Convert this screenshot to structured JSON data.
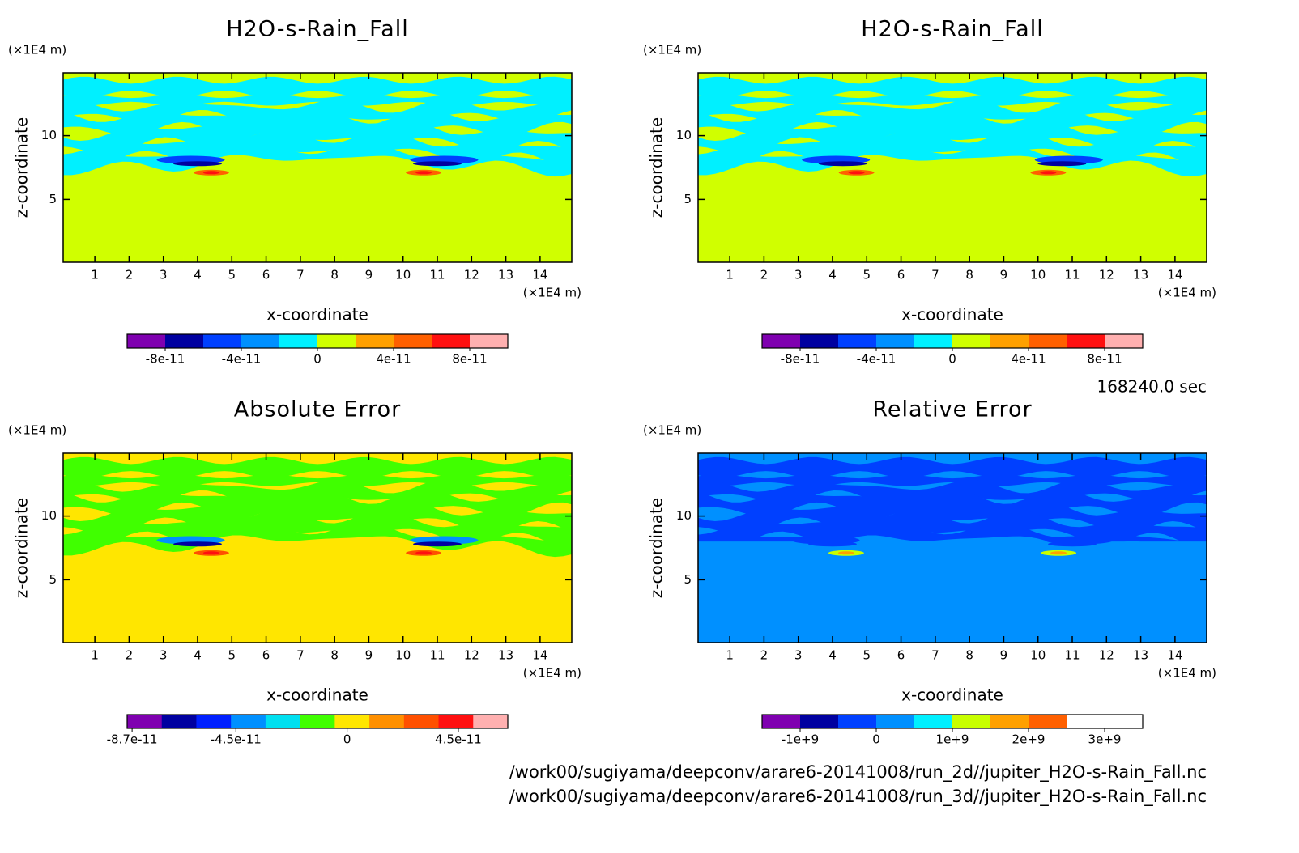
{
  "time": "168240.0 sec",
  "files": [
    "/work00/sugiyama/deepconv/arare6-20141008/run_2d//jupiter_H2O-s-Rain_Fall.nc",
    "/work00/sugiyama/deepconv/arare6-20141008/run_3d//jupiter_H2O-s-Rain_Fall.nc"
  ],
  "chart_data": [
    {
      "type": "contour",
      "title": "H2O-s-Rain_Fall",
      "x_label": "x-coordinate",
      "y_label": "z-coordinate",
      "x_unit": "(×1E4 m)",
      "y_unit": "(×1E4 m)",
      "xlim": [
        0.075,
        14.925
      ],
      "ylim": [
        0.075,
        14.925
      ],
      "xticks": [
        1,
        2,
        3,
        4,
        5,
        6,
        7,
        8,
        9,
        10,
        11,
        12,
        13,
        14
      ],
      "yticks": [
        5,
        10
      ],
      "colorbar": {
        "lim": [
          -1e-10,
          1e-10
        ],
        "colors": [
          "#7f00b0",
          "#0000a0",
          "#0040ff",
          "#0090ff",
          "#00f0ff",
          "#d0ff00",
          "#ffa000",
          "#ff6000",
          "#ff1010",
          "#ffb0b0"
        ],
        "ticks": [
          {
            "value": -8e-11,
            "label": "-8e-11"
          },
          {
            "value": -4e-11,
            "label": "-4e-11"
          },
          0,
          {
            "value": 4e-11,
            "label": "4e-11"
          },
          {
            "value": 8e-11,
            "label": "8e-11"
          }
        ]
      }
    },
    {
      "type": "contour",
      "title": "H2O-s-Rain_Fall",
      "x_label": "x-coordinate",
      "y_label": "z-coordinate",
      "x_unit": "(×1E4 m)",
      "y_unit": "(×1E4 m)",
      "xlim": [
        0.075,
        14.925
      ],
      "ylim": [
        0.075,
        14.925
      ],
      "xticks": [
        1,
        2,
        3,
        4,
        5,
        6,
        7,
        8,
        9,
        10,
        11,
        12,
        13,
        14
      ],
      "yticks": [
        5,
        10
      ],
      "colorbar": {
        "lim": [
          -1e-10,
          1e-10
        ],
        "colors": [
          "#7f00b0",
          "#0000a0",
          "#0040ff",
          "#0090ff",
          "#00f0ff",
          "#d0ff00",
          "#ffa000",
          "#ff6000",
          "#ff1010",
          "#ffb0b0"
        ],
        "ticks": [
          {
            "value": -8e-11,
            "label": "-8e-11"
          },
          {
            "value": -4e-11,
            "label": "-4e-11"
          },
          0,
          {
            "value": 4e-11,
            "label": "4e-11"
          },
          {
            "value": 8e-11,
            "label": "8e-11"
          }
        ]
      }
    },
    {
      "type": "contour",
      "title": "Absolute Error",
      "x_label": "x-coordinate",
      "y_label": "z-coordinate",
      "x_unit": "(×1E4 m)",
      "y_unit": "(×1E4 m)",
      "xlim": [
        0.075,
        14.925
      ],
      "ylim": [
        0.075,
        14.925
      ],
      "xticks": [
        1,
        2,
        3,
        4,
        5,
        6,
        7,
        8,
        9,
        10,
        11,
        12,
        13,
        14
      ],
      "yticks": [
        5,
        10
      ],
      "colorbar": {
        "lim": [
          -8.9e-11,
          6.5e-11
        ],
        "colors": [
          "#7f00b0",
          "#0000a0",
          "#0020ff",
          "#0090ff",
          "#00e0f0",
          "#40ff00",
          "#ffe600",
          "#ff9000",
          "#ff5000",
          "#ff1010",
          "#ffb0b0"
        ],
        "ticks": [
          {
            "value": -8.7e-11,
            "label": "-8.7e-11"
          },
          {
            "value": -4.5e-11,
            "label": "-4.5e-11"
          },
          0,
          {
            "value": 4.5e-11,
            "label": "4.5e-11"
          }
        ]
      }
    },
    {
      "type": "contour",
      "title": "Relative Error",
      "x_label": "x-coordinate",
      "y_label": "z-coordinate",
      "x_unit": "(×1E4 m)",
      "y_unit": "(×1E4 m)",
      "xlim": [
        0.075,
        14.925
      ],
      "ylim": [
        0.075,
        14.925
      ],
      "xticks": [
        1,
        2,
        3,
        4,
        5,
        6,
        7,
        8,
        9,
        10,
        11,
        12,
        13,
        14
      ],
      "yticks": [
        5,
        10
      ],
      "colorbar": {
        "lim": [
          -1500000000.0,
          3500000000.0
        ],
        "colors": [
          "#7f00b0",
          "#0000a0",
          "#0040ff",
          "#0090ff",
          "#00f0ff",
          "#c8ff00",
          "#ffa000",
          "#ff6000",
          "#ffffff",
          "#ffffff"
        ],
        "ticks": [
          {
            "value": -1000000000.0,
            "label": "-1e+9"
          },
          0,
          {
            "value": 1000000000.0,
            "label": "1e+9"
          },
          {
            "value": 2000000000.0,
            "label": "2e+9"
          },
          {
            "value": 3000000000.0,
            "label": "3e+9"
          }
        ]
      }
    }
  ]
}
